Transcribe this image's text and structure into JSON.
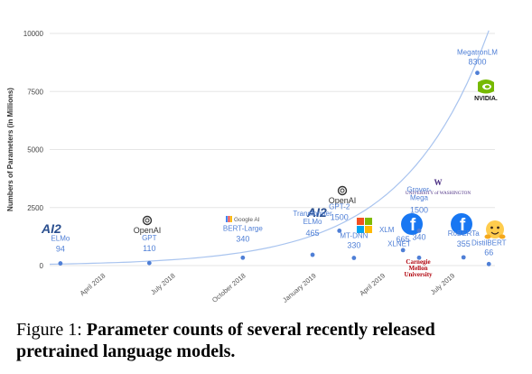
{
  "chart_data": {
    "type": "scatter",
    "ylabel": "Numbers of Parameters (in Millions)",
    "xlabel": "",
    "ylim": [
      0,
      10000
    ],
    "yticks": [
      "0",
      "2500",
      "5000",
      "7500",
      "10000"
    ],
    "x_ticks": [
      "April 2018",
      "July 2018",
      "October 2018",
      "January 2019",
      "April 2019",
      "July 2019"
    ],
    "grid": true,
    "trendline": "exponential",
    "points": [
      {
        "name": "ELMo",
        "value": 94,
        "date": "2018-02-15",
        "value_label": "94"
      },
      {
        "name": "GPT",
        "value": 110,
        "date": "2018-06-11",
        "value_label": "110"
      },
      {
        "name": "BERT-Large",
        "value": 340,
        "date": "2018-10-11",
        "value_label": "340"
      },
      {
        "name": "Transformer ELMo",
        "value": 465,
        "date": "2019-01-10",
        "value_label": "465"
      },
      {
        "name": "GPT-2",
        "value": 1500,
        "date": "2019-02-14",
        "value_label": "1500"
      },
      {
        "name": "MT-DNN",
        "value": 330,
        "date": "2019-03-05",
        "value_label": "330"
      },
      {
        "name": "XLM",
        "value": 665,
        "date": "2019-05-08",
        "value_label": "665"
      },
      {
        "name": "Grover-Mega",
        "value": 1500,
        "date": "2019-05-29",
        "value_label": "1500"
      },
      {
        "name": "XLNET",
        "value": 340,
        "date": "2019-05-29",
        "value_label": "340"
      },
      {
        "name": "RoBERTa",
        "value": 355,
        "date": "2019-07-26",
        "value_label": "355"
      },
      {
        "name": "MegatronLM",
        "value": 8300,
        "date": "2019-08-13",
        "value_label": "8300"
      },
      {
        "name": "DistilBERT",
        "value": 66,
        "date": "2019-08-28",
        "value_label": "66"
      }
    ]
  },
  "logos": {
    "ai2": "AI2",
    "openai": "OpenAI",
    "google": "Google AI",
    "uw_line1": "UNIVERSITY of WASHINGTON",
    "uw_mark": "W",
    "nvidia": "NVIDIA.",
    "cmu_line1": "Carnegie",
    "cmu_line2": "Mellon",
    "cmu_line3": "University"
  },
  "colors": {
    "point": "#4f7fd6",
    "trend": "#a9c4ef",
    "facebook": "#1877f2",
    "nvidia": "#76b900",
    "microsoft_red": "#f25022",
    "microsoft_green": "#7fba00",
    "microsoft_blue": "#00a4ef",
    "microsoft_yellow": "#ffb900",
    "uw_purple": "#4b2e83",
    "cmu_red": "#b1040e"
  },
  "caption": {
    "figure": "Figure 1:",
    "text": "Parameter counts of several recently released pretrained language models."
  }
}
